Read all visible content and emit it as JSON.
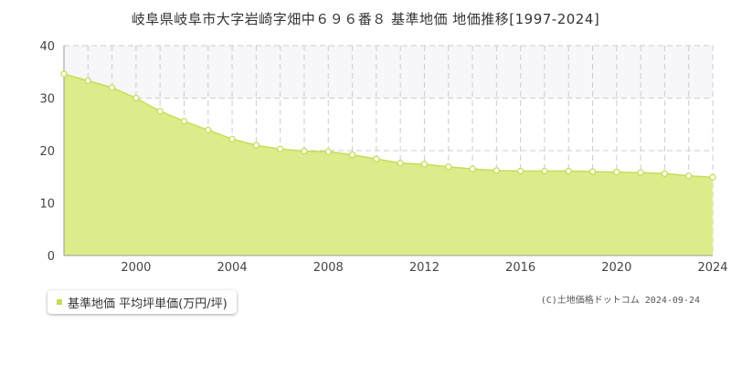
{
  "colors": {
    "fill": "#dcec8a",
    "line": "#c5dd58",
    "upper_band": "#f7f7f9",
    "grid": "#cccccc",
    "marker_fill": "#ffffff",
    "legend_marker": "#c5dd58"
  },
  "legend": {
    "label": "基準地価 平均坪単価(万円/坪)"
  },
  "copyright": "(C)土地価格ドットコム 2024-09-24",
  "chart_data": {
    "type": "area",
    "title": "岐阜県岐阜市大字岩崎字畑中６９６番８ 基準地価 地価推移[1997-2024]",
    "xlabel": "",
    "ylabel": "",
    "xlim": [
      1997,
      2024
    ],
    "ylim": [
      0,
      40
    ],
    "x_ticks": [
      2000,
      2004,
      2008,
      2012,
      2016,
      2020,
      2024
    ],
    "y_ticks": [
      0,
      10,
      20,
      30,
      40
    ],
    "grid": true,
    "legend_position": "bottom-left",
    "series": [
      {
        "name": "基準地価 平均坪単価(万円/坪)",
        "x": [
          1997,
          1998,
          1999,
          2000,
          2001,
          2002,
          2003,
          2004,
          2005,
          2006,
          2007,
          2008,
          2009,
          2010,
          2011,
          2012,
          2013,
          2014,
          2015,
          2016,
          2017,
          2018,
          2019,
          2020,
          2021,
          2022,
          2023,
          2024
        ],
        "values": [
          34.6,
          33.3,
          32.0,
          30.0,
          27.5,
          25.6,
          23.9,
          22.2,
          21.0,
          20.3,
          19.9,
          19.8,
          19.2,
          18.4,
          17.6,
          17.4,
          16.9,
          16.5,
          16.2,
          16.1,
          16.1,
          16.1,
          16.0,
          15.9,
          15.8,
          15.6,
          15.2,
          14.9
        ]
      }
    ]
  }
}
